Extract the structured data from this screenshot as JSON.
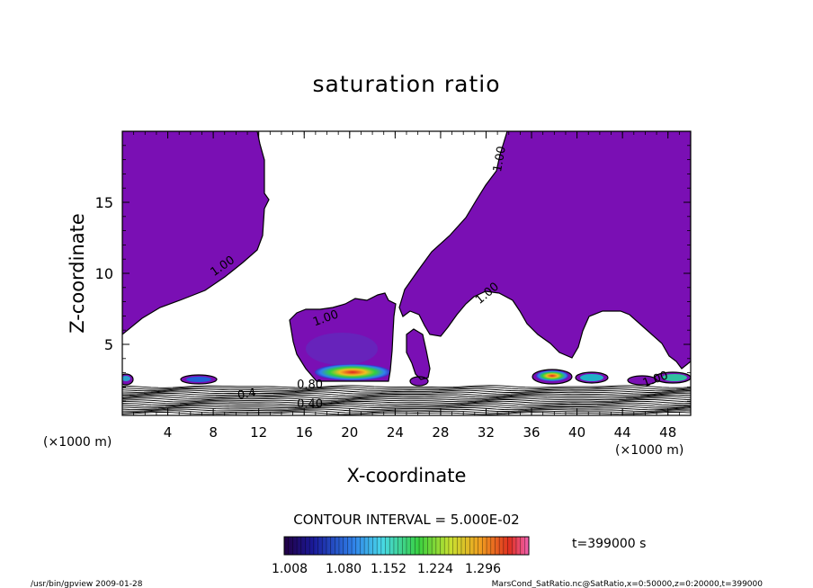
{
  "chart_data": {
    "type": "contour",
    "title": "saturation ratio",
    "xlabel": "X-coordinate",
    "ylabel": "Z-coordinate",
    "x_unit_left": "(×1000 m)",
    "x_unit_right": "(×1000 m)",
    "xlim": [
      0,
      50
    ],
    "ylim": [
      0,
      20
    ],
    "x_ticks": [
      4,
      8,
      12,
      16,
      20,
      24,
      28,
      32,
      36,
      40,
      44,
      48
    ],
    "y_ticks": [
      5,
      10,
      15
    ],
    "contour_interval_text": "CONTOUR INTERVAL = 5.000E-02",
    "time_text": "t=399000 s",
    "colorbar": {
      "tick_labels": [
        "1.008",
        "1.080",
        "1.152",
        "1.224",
        "1.296"
      ],
      "min": 1.008,
      "max": 1.296
    },
    "contour_labels": [
      {
        "text": "1.00",
        "x": 9.0,
        "y": 10.3,
        "angle": -35
      },
      {
        "text": "1.00",
        "x": 18.0,
        "y": 6.6,
        "angle": -20
      },
      {
        "text": "1.00",
        "x": 32.3,
        "y": 8.4,
        "angle": -40
      },
      {
        "text": "1.00",
        "x": 33.5,
        "y": 18.0,
        "angle": -80
      },
      {
        "text": "0.80",
        "x": 16.5,
        "y": 1.9,
        "angle": 0
      },
      {
        "text": "0.40",
        "x": 16.5,
        "y": 0.55,
        "angle": 0
      },
      {
        "text": "0.4",
        "x": 11.0,
        "y": 1.25,
        "angle": -10
      },
      {
        "text": "1.00",
        "x": 47.0,
        "y": 2.3,
        "angle": -20
      }
    ],
    "fill_color": "#7a0fb4",
    "footer_left": "/usr/bin/gpview   2009-01-28",
    "footer_right": "MarsCond_SatRatio.nc@SatRatio,x=0:50000,z=0:20000,t=399000"
  }
}
